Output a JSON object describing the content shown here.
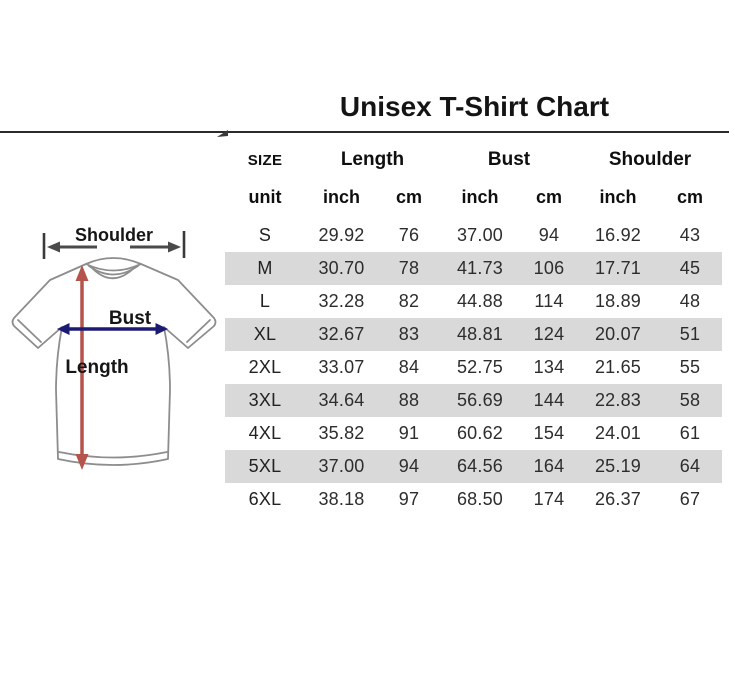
{
  "page": {
    "title": "Unisex T-Shirt Chart"
  },
  "colors": {
    "alt_row": "#d9d9d9",
    "divider": "#2b2b2b",
    "shoulder_arrow": "#4a4a4a",
    "shoulder_end_bar": "#3a3a3a",
    "bust_arrow": "#1b1b74",
    "length_arrow": "#b5544c",
    "shirt_outline": "#8d8d8d",
    "label_text": "#161616"
  },
  "diagram": {
    "labels": {
      "shoulder": "Shoulder",
      "bust": "Bust",
      "length": "Length"
    }
  },
  "chart_data": {
    "type": "table",
    "title": "Unisex T-Shirt Chart",
    "header": {
      "size": "SIZE",
      "groups": [
        "Length",
        "Bust",
        "Shoulder"
      ],
      "unit_label": "unit",
      "units": [
        "inch",
        "cm",
        "inch",
        "cm",
        "inch",
        "cm"
      ]
    },
    "columns": [
      "SIZE",
      "Length (inch)",
      "Length (cm)",
      "Bust (inch)",
      "Bust (cm)",
      "Shoulder (inch)",
      "Shoulder (cm)"
    ],
    "rows": [
      [
        "S",
        "29.92",
        "76",
        "37.00",
        "94",
        "16.92",
        "43"
      ],
      [
        "M",
        "30.70",
        "78",
        "41.73",
        "106",
        "17.71",
        "45"
      ],
      [
        "L",
        "32.28",
        "82",
        "44.88",
        "114",
        "18.89",
        "48"
      ],
      [
        "XL",
        "32.67",
        "83",
        "48.81",
        "124",
        "20.07",
        "51"
      ],
      [
        "2XL",
        "33.07",
        "84",
        "52.75",
        "134",
        "21.65",
        "55"
      ],
      [
        "3XL",
        "34.64",
        "88",
        "56.69",
        "144",
        "22.83",
        "58"
      ],
      [
        "4XL",
        "35.82",
        "91",
        "60.62",
        "154",
        "24.01",
        "61"
      ],
      [
        "5XL",
        "37.00",
        "94",
        "64.56",
        "164",
        "25.19",
        "64"
      ],
      [
        "6XL",
        "38.18",
        "97",
        "68.50",
        "174",
        "26.37",
        "67"
      ]
    ]
  }
}
